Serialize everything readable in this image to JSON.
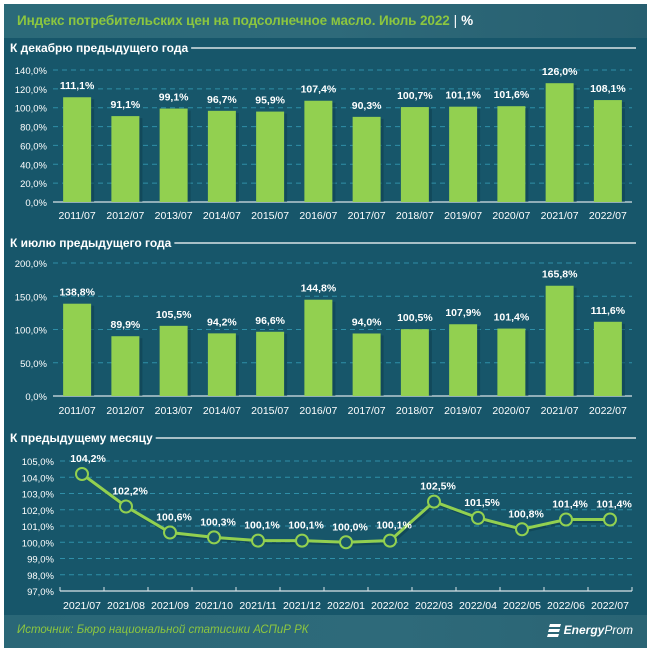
{
  "header": {
    "title": "Индекс потребительских цен на подсолнечное масло. Июль 2022",
    "separator": "|",
    "unit": "%"
  },
  "footer": {
    "source": "Источник: Бюро национальной статисики АСПиР РК",
    "logo_bold": "Energy",
    "logo_light": "Prom",
    "logo_icon": "energyprom-stripes-icon"
  },
  "colors": {
    "background": "#17566a",
    "header": "#2e6a7a",
    "accent_green": "#8cc63f",
    "bar": "#92d050",
    "gridline": "#2f8fa8",
    "text": "#ffffff"
  },
  "chart_data": [
    {
      "type": "bar",
      "title": "К декабрю предыдущего года",
      "categories": [
        "2011/07",
        "2012/07",
        "2013/07",
        "2014/07",
        "2015/07",
        "2016/07",
        "2017/07",
        "2018/07",
        "2019/07",
        "2020/07",
        "2021/07",
        "2022/07"
      ],
      "values": [
        111.1,
        91.1,
        99.1,
        96.7,
        95.9,
        107.4,
        90.3,
        100.7,
        101.1,
        101.6,
        126.0,
        108.1
      ],
      "labels": [
        "111,1%",
        "91,1%",
        "99,1%",
        "96,7%",
        "95,9%",
        "107,4%",
        "90,3%",
        "100,7%",
        "101,1%",
        "101,6%",
        "126,0%",
        "108,1%"
      ],
      "ylim": [
        0,
        140
      ],
      "yticks": [
        0,
        20,
        40,
        60,
        80,
        100,
        120,
        140
      ],
      "ytick_labels": [
        "0,0%",
        "20,0%",
        "40,0%",
        "60,0%",
        "80,0%",
        "100,0%",
        "120,0%",
        "140,0%"
      ],
      "xlabel": "",
      "ylabel": "",
      "grid": true,
      "legend": "none"
    },
    {
      "type": "bar",
      "title": "К июлю предыдущего года",
      "categories": [
        "2011/07",
        "2012/07",
        "2013/07",
        "2014/07",
        "2015/07",
        "2016/07",
        "2017/07",
        "2018/07",
        "2019/07",
        "2020/07",
        "2021/07",
        "2022/07"
      ],
      "values": [
        138.8,
        89.9,
        105.5,
        94.2,
        96.6,
        144.8,
        94.0,
        100.5,
        107.9,
        101.4,
        165.8,
        111.6
      ],
      "labels": [
        "138,8%",
        "89,9%",
        "105,5%",
        "94,2%",
        "96,6%",
        "144,8%",
        "94,0%",
        "100,5%",
        "107,9%",
        "101,4%",
        "165,8%",
        "111,6%"
      ],
      "ylim": [
        0,
        200
      ],
      "yticks": [
        0,
        50,
        100,
        150,
        200
      ],
      "ytick_labels": [
        "0,0%",
        "50,0%",
        "100,0%",
        "150,0%",
        "200,0%"
      ],
      "xlabel": "",
      "ylabel": "",
      "grid": true,
      "legend": "none"
    },
    {
      "type": "line",
      "title": "К предыдущему месяцу",
      "categories": [
        "2021/07",
        "2021/08",
        "2021/09",
        "2021/10",
        "2021/11",
        "2021/12",
        "2022/01",
        "2022/02",
        "2022/03",
        "2022/04",
        "2022/05",
        "2022/06",
        "2022/07"
      ],
      "values": [
        104.2,
        102.2,
        100.6,
        100.3,
        100.1,
        100.1,
        100.0,
        100.1,
        102.5,
        101.5,
        100.8,
        101.4,
        101.4
      ],
      "labels": [
        "104,2%",
        "102,2%",
        "100,6%",
        "100,3%",
        "100,1%",
        "100,1%",
        "100,0%",
        "100,1%",
        "102,5%",
        "101,5%",
        "100,8%",
        "101,4%",
        "101,4%"
      ],
      "ylim": [
        97,
        105
      ],
      "yticks": [
        97,
        98,
        99,
        100,
        101,
        102,
        103,
        104,
        105
      ],
      "ytick_labels": [
        "97,0%",
        "98,0%",
        "99,0%",
        "100,0%",
        "101,0%",
        "102,0%",
        "103,0%",
        "104,0%",
        "105,0%"
      ],
      "xlabel": "",
      "ylabel": "",
      "grid": true,
      "legend": "none"
    }
  ]
}
